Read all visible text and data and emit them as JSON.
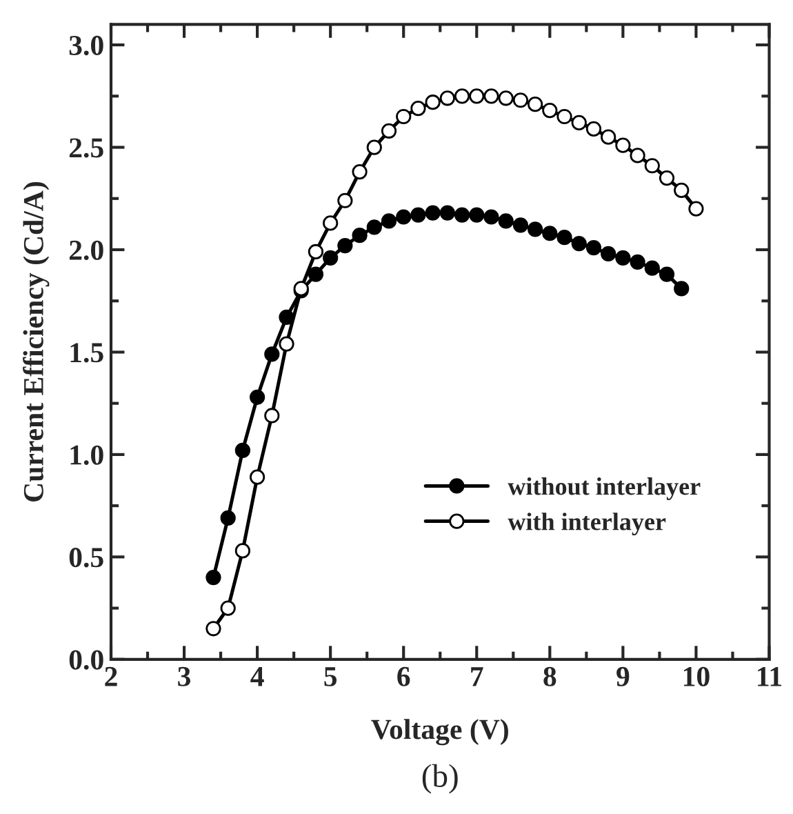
{
  "chart_data": {
    "type": "line",
    "xlabel": "Voltage (V)",
    "ylabel": "Current Efficiency (Cd/A)",
    "annotations": [
      "(b)"
    ],
    "xlim": [
      2,
      11
    ],
    "xticks": [
      2,
      3,
      4,
      5,
      6,
      7,
      8,
      9,
      10,
      11
    ],
    "ylim": [
      0,
      3.1
    ],
    "yticks": [
      {
        "value": 0,
        "label": "0.0"
      },
      0.5,
      {
        "value": 1,
        "label": "1.0"
      },
      1.5,
      {
        "value": 2,
        "label": "2.0"
      },
      2.5,
      {
        "value": 3,
        "label": "3.0"
      }
    ],
    "grid": false,
    "legend": "bottom right",
    "marker": "circle",
    "line_style": "solid",
    "series": [
      {
        "name": "without interlayer",
        "color": "#000000",
        "x": [
          3.4,
          3.6,
          3.8,
          4.0,
          4.2,
          4.4,
          4.6,
          4.8,
          5.0,
          5.2,
          5.4,
          5.6,
          5.8,
          6.0,
          6.2,
          6.4,
          6.6,
          6.8,
          7.0,
          7.2,
          7.4,
          7.6,
          7.8,
          8.0,
          8.2,
          8.4,
          8.6,
          8.8,
          9.0,
          9.2,
          9.4,
          9.6,
          9.8
        ],
        "values": [
          0.4,
          0.69,
          1.02,
          1.28,
          1.49,
          1.67,
          1.8,
          1.88,
          1.96,
          2.02,
          2.07,
          2.11,
          2.14,
          2.16,
          2.17,
          2.18,
          2.18,
          2.17,
          2.17,
          2.16,
          2.14,
          2.12,
          2.1,
          2.08,
          2.06,
          2.03,
          2.01,
          1.98,
          1.96,
          1.94,
          1.91,
          1.88,
          1.81
        ]
      },
      {
        "name": "with interlayer",
        "color": "#ffffff",
        "x": [
          3.4,
          3.6,
          3.8,
          4.0,
          4.2,
          4.4,
          4.6,
          4.8,
          5.0,
          5.2,
          5.4,
          5.6,
          5.8,
          6.0,
          6.2,
          6.4,
          6.6,
          6.8,
          7.0,
          7.2,
          7.4,
          7.6,
          7.8,
          8.0,
          8.2,
          8.4,
          8.6,
          8.8,
          9.0,
          9.2,
          9.4,
          9.6,
          9.8,
          10.0
        ],
        "values": [
          0.15,
          0.25,
          0.53,
          0.89,
          1.19,
          1.54,
          1.81,
          1.99,
          2.13,
          2.24,
          2.38,
          2.5,
          2.58,
          2.65,
          2.69,
          2.72,
          2.74,
          2.75,
          2.75,
          2.75,
          2.74,
          2.73,
          2.71,
          2.68,
          2.65,
          2.62,
          2.59,
          2.55,
          2.51,
          2.46,
          2.41,
          2.35,
          2.29,
          2.2
        ]
      }
    ]
  }
}
